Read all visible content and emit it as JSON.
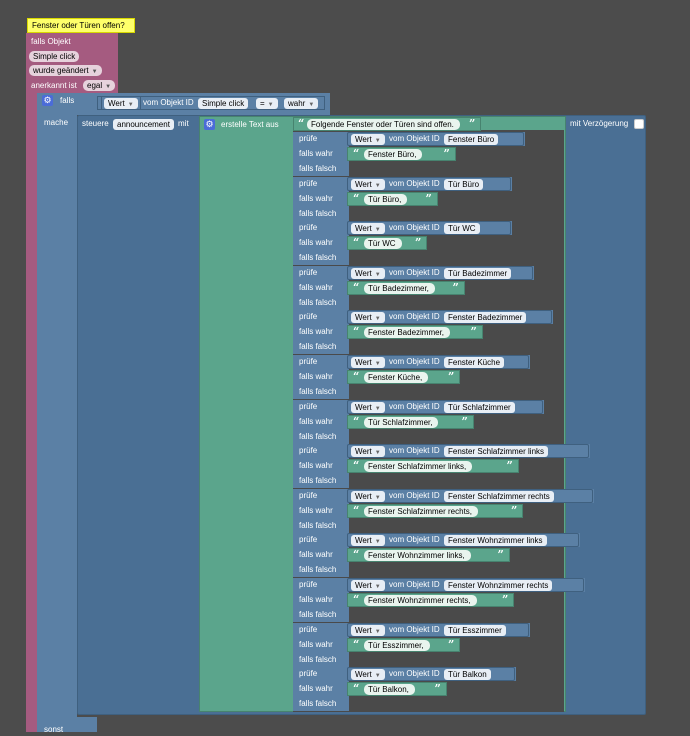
{
  "trigger": {
    "comment": "Fenster oder Türen offen?",
    "falls_objekt": "falls Objekt",
    "object": "Simple click",
    "event": "wurde geändert",
    "ack_label": "anerkannt ist",
    "ack_value": "egal"
  },
  "falls_label": "falls",
  "mache_label": "mache",
  "sonst_label": "sonst",
  "condition": {
    "wert": "Wert",
    "vom_objekt": "vom Objekt ID",
    "object": "Simple click",
    "operator": "=",
    "value": "wahr"
  },
  "control": {
    "steuere": "steuere",
    "target": "announcement",
    "mit": "mit",
    "mit_verzoegerung": "mit Verzögerung"
  },
  "create_text": {
    "label": "erstelle Text aus",
    "first_text": "Folgende Fenster oder Türen sind offen."
  },
  "labels": {
    "pruefe": "prüfe",
    "falls_wahr": "falls wahr",
    "falls_falsch": "falls falsch",
    "wert": "Wert",
    "vom_objekt": "vom Objekt ID"
  },
  "checks": [
    {
      "id": "Fenster Büro",
      "text": "Fenster Büro,"
    },
    {
      "id": "Tür Büro",
      "text": "Tür Büro,"
    },
    {
      "id": "Tür WC",
      "text": "Tür WC"
    },
    {
      "id": "Tür Badezimmer",
      "text": "Tür Badezimmer,"
    },
    {
      "id": "Fenster Badezimmer",
      "text": "Fenster Badezimmer,"
    },
    {
      "id": "Fenster Küche",
      "text": "Fenster Küche,"
    },
    {
      "id": "Tür Schlafzimmer",
      "text": "Tür Schlafzimmer,"
    },
    {
      "id": "Fenster Schlafzimmer links",
      "text": "Fenster Schlafzimmer links,"
    },
    {
      "id": "Fenster Schlafzimmer rechts",
      "text": "Fenster Schlafzimmer rechts,"
    },
    {
      "id": "Fenster Wohnzimmer links",
      "text": "Fenster Wohnzimmer links,"
    },
    {
      "id": "Fenster Wohnzimmer rechts",
      "text": "Fenster Wohnzimmer rechts,"
    },
    {
      "id": "Tür Esszimmer",
      "text": "Tür Esszimmer,"
    },
    {
      "id": "Tür Balkon",
      "text": "Tür Balkon,"
    }
  ],
  "colors": {
    "background": "#4c4c4c",
    "trigger": "#a55b80",
    "logic": "#5b80a5",
    "text": "#5ba58c",
    "comment": "#feff6a"
  }
}
